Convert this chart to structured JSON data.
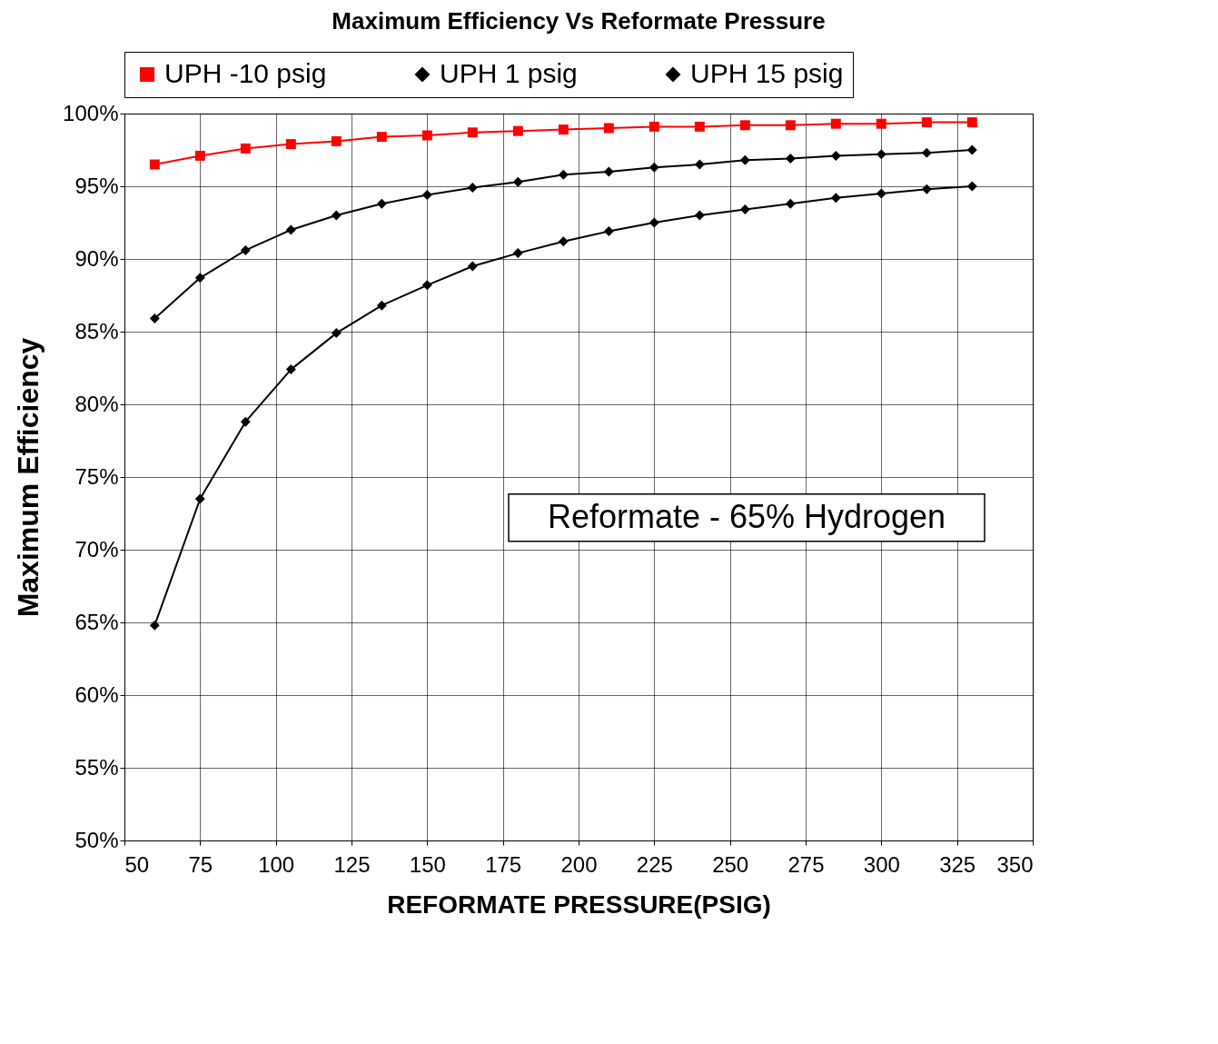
{
  "chart_data": {
    "type": "line",
    "title": "Maximum Efficiency Vs Reformate Pressure",
    "xlabel": "REFORMATE PRESSURE(PSIG)",
    "ylabel": "Maximum Efficiency",
    "x": [
      60,
      75,
      90,
      105,
      120,
      135,
      150,
      165,
      180,
      195,
      210,
      225,
      240,
      255,
      270,
      285,
      300,
      315,
      330
    ],
    "series": [
      {
        "name": "UPH -10 psig",
        "color": "#ff0000",
        "marker": "square",
        "values": [
          96.5,
          97.1,
          97.6,
          97.9,
          98.1,
          98.4,
          98.5,
          98.7,
          98.8,
          98.9,
          99.0,
          99.1,
          99.1,
          99.2,
          99.2,
          99.3,
          99.3,
          99.4,
          99.4
        ]
      },
      {
        "name": "UPH 1 psig",
        "color": "#000000",
        "marker": "diamond",
        "values": [
          85.9,
          88.7,
          90.6,
          92.0,
          93.0,
          93.8,
          94.4,
          94.9,
          95.3,
          95.8,
          96.0,
          96.3,
          96.5,
          96.8,
          96.9,
          97.1,
          97.2,
          97.3,
          97.5
        ]
      },
      {
        "name": "UPH 15 psig",
        "color": "#000000",
        "marker": "diamond",
        "values": [
          64.8,
          73.5,
          78.8,
          82.4,
          84.9,
          86.8,
          88.2,
          89.5,
          90.4,
          91.2,
          91.9,
          92.5,
          93.0,
          93.4,
          93.8,
          94.2,
          94.5,
          94.8,
          95.0
        ]
      }
    ],
    "xlim": [
      50,
      350
    ],
    "xticks": [
      50,
      75,
      100,
      125,
      150,
      175,
      200,
      225,
      250,
      275,
      300,
      325,
      350
    ],
    "ylim": [
      50,
      100
    ],
    "yticks": [
      {
        "value": 50,
        "label": "50%"
      },
      {
        "value": 55,
        "label": "55%"
      },
      {
        "value": 60,
        "label": "60%"
      },
      {
        "value": 65,
        "label": "65%"
      },
      {
        "value": 70,
        "label": "70%"
      },
      {
        "value": 75,
        "label": "75%"
      },
      {
        "value": 80,
        "label": "80%"
      },
      {
        "value": 85,
        "label": "85%"
      },
      {
        "value": 90,
        "label": "90%"
      },
      {
        "value": 95,
        "label": "95%"
      },
      {
        "value": 100,
        "label": "100%"
      }
    ],
    "grid": true,
    "legend": "top",
    "line_style": "solid",
    "annotations": [
      "Reformate - 65% Hydrogen"
    ]
  }
}
